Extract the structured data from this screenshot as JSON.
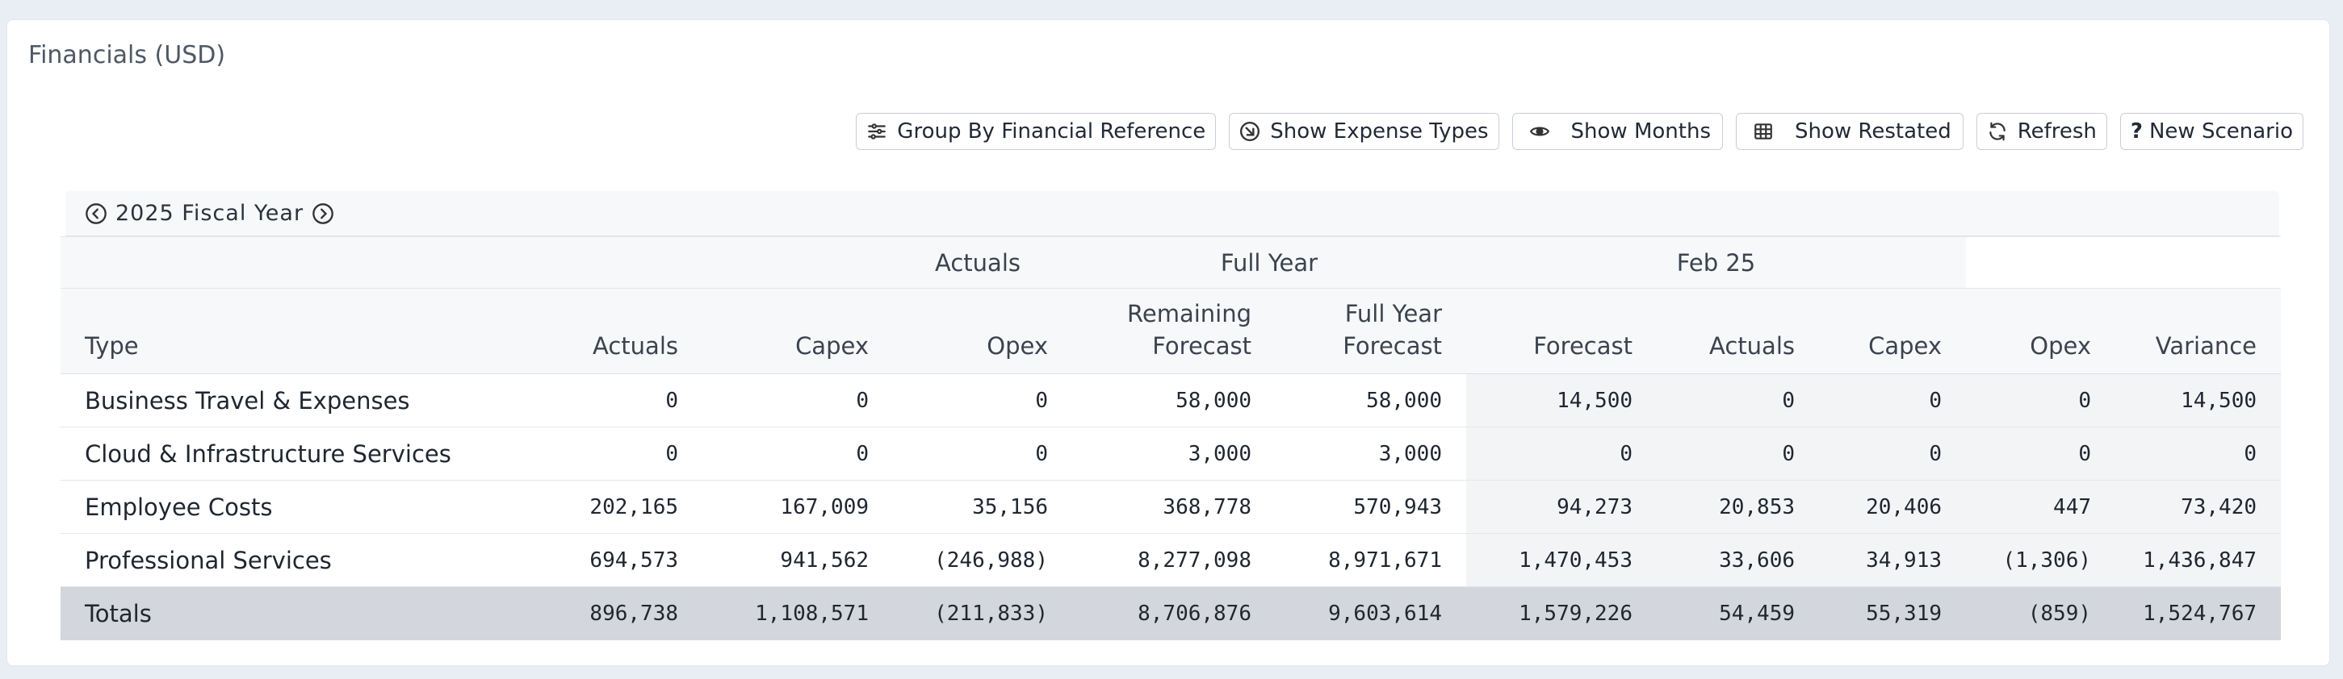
{
  "card": {
    "title": "Financials (USD)"
  },
  "toolbar": {
    "group_by": "Group By Financial Reference",
    "expense_types": "Show Expense Types",
    "months": "Show Months",
    "restated": "Show Restated",
    "refresh": "Refresh",
    "new_scenario": "New Scenario",
    "new_scenario_icon": "?"
  },
  "fiscal": {
    "label": "2025 Fiscal Year"
  },
  "table": {
    "groups": {
      "actuals": "Actuals",
      "full_year": "Full Year",
      "period": "Feb 25"
    },
    "columns": {
      "type": "Type",
      "actuals": "Actuals",
      "capex": "Capex",
      "opex": "Opex",
      "remaining_forecast": "Remaining Forecast",
      "full_year_forecast": "Full Year Forecast",
      "p_forecast": "Forecast",
      "p_actuals": "Actuals",
      "p_capex": "Capex",
      "p_opex": "Opex",
      "p_variance": "Variance"
    },
    "rows": [
      {
        "type": "Business Travel & Expenses",
        "v": [
          "0",
          "0",
          "0",
          "58,000",
          "58,000",
          "14,500",
          "0",
          "0",
          "0",
          "14,500"
        ]
      },
      {
        "type": "Cloud & Infrastructure Services",
        "v": [
          "0",
          "0",
          "0",
          "3,000",
          "3,000",
          "0",
          "0",
          "0",
          "0",
          "0"
        ]
      },
      {
        "type": "Employee Costs",
        "v": [
          "202,165",
          "167,009",
          "35,156",
          "368,778",
          "570,943",
          "94,273",
          "20,853",
          "20,406",
          "447",
          "73,420"
        ]
      },
      {
        "type": "Professional Services",
        "v": [
          "694,573",
          "941,562",
          "(246,988)",
          "8,277,098",
          "8,971,671",
          "1,470,453",
          "33,606",
          "34,913",
          "(1,306)",
          "1,436,847"
        ]
      }
    ],
    "totals": {
      "type": "Totals",
      "v": [
        "896,738",
        "1,108,571",
        "(211,833)",
        "8,706,876",
        "9,603,614",
        "1,579,226",
        "54,459",
        "55,319",
        "(859)",
        "1,524,767"
      ]
    }
  }
}
